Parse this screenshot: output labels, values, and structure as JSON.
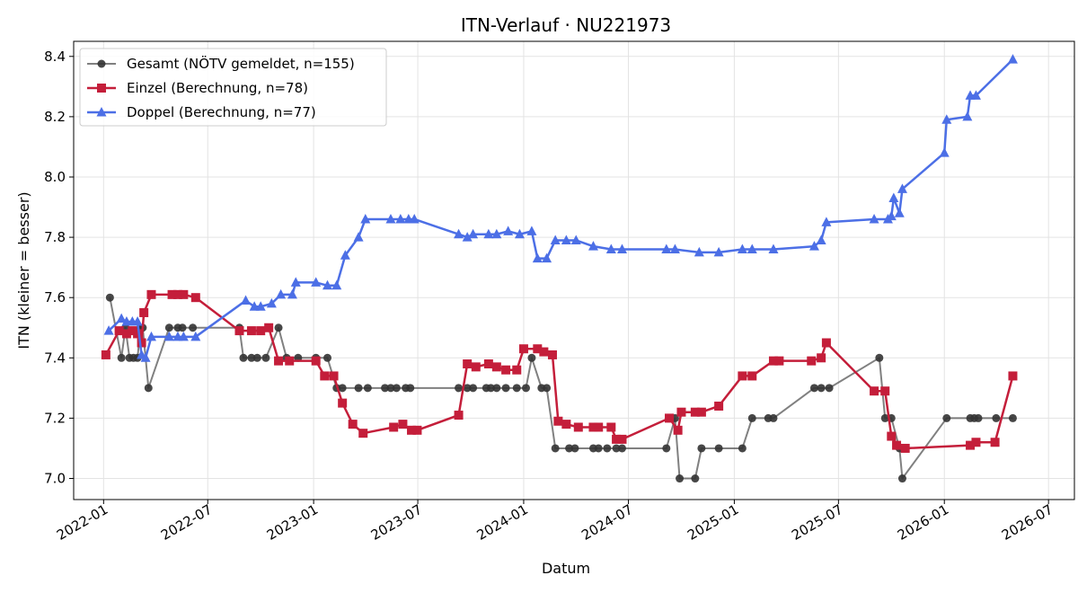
{
  "chart_data": {
    "type": "line",
    "title": "ITN-Verlauf · NU221973",
    "xlabel": "Datum",
    "ylabel": "ITN  (kleiner = besser)",
    "x_ticks": [
      "2022-01",
      "2022-07",
      "2023-01",
      "2023-07",
      "2024-01",
      "2024-07",
      "2025-01",
      "2025-07",
      "2026-01",
      "2026-07"
    ],
    "y_ticks": [
      7.0,
      7.2,
      7.4,
      7.6,
      7.8,
      8.0,
      8.2,
      8.4
    ],
    "xlim": [
      "2021-11-10",
      "2026-08-15"
    ],
    "ylim": [
      6.93,
      8.45
    ],
    "grid": true,
    "legend_position": "top-left",
    "series": [
      {
        "name": "Gesamt (NÖTV gemeldet, n=155)",
        "color": "#555555",
        "marker": "circle",
        "points": [
          [
            "2022-01-12",
            7.6
          ],
          [
            "2022-02-01",
            7.4
          ],
          [
            "2022-02-08",
            7.5
          ],
          [
            "2022-02-15",
            7.4
          ],
          [
            "2022-02-22",
            7.4
          ],
          [
            "2022-03-01",
            7.4
          ],
          [
            "2022-03-06",
            7.5
          ],
          [
            "2022-03-10",
            7.5
          ],
          [
            "2022-03-20",
            7.3
          ],
          [
            "2022-04-25",
            7.5
          ],
          [
            "2022-05-10",
            7.5
          ],
          [
            "2022-05-18",
            7.5
          ],
          [
            "2022-06-05",
            7.5
          ],
          [
            "2022-08-25",
            7.5
          ],
          [
            "2022-09-01",
            7.4
          ],
          [
            "2022-09-15",
            7.4
          ],
          [
            "2022-09-25",
            7.4
          ],
          [
            "2022-10-10",
            7.4
          ],
          [
            "2022-11-01",
            7.5
          ],
          [
            "2022-11-15",
            7.4
          ],
          [
            "2022-12-05",
            7.4
          ],
          [
            "2023-01-05",
            7.4
          ],
          [
            "2023-01-25",
            7.4
          ],
          [
            "2023-02-10",
            7.3
          ],
          [
            "2023-02-20",
            7.3
          ],
          [
            "2023-03-20",
            7.3
          ],
          [
            "2023-04-05",
            7.3
          ],
          [
            "2023-05-05",
            7.3
          ],
          [
            "2023-05-15",
            7.3
          ],
          [
            "2023-05-25",
            7.3
          ],
          [
            "2023-06-10",
            7.3
          ],
          [
            "2023-06-18",
            7.3
          ],
          [
            "2023-09-10",
            7.3
          ],
          [
            "2023-09-25",
            7.3
          ],
          [
            "2023-10-05",
            7.3
          ],
          [
            "2023-10-28",
            7.3
          ],
          [
            "2023-11-05",
            7.3
          ],
          [
            "2023-11-15",
            7.3
          ],
          [
            "2023-12-01",
            7.3
          ],
          [
            "2023-12-20",
            7.3
          ],
          [
            "2024-01-05",
            7.3
          ],
          [
            "2024-01-15",
            7.4
          ],
          [
            "2024-02-01",
            7.3
          ],
          [
            "2024-02-10",
            7.3
          ],
          [
            "2024-02-25",
            7.1
          ],
          [
            "2024-03-20",
            7.1
          ],
          [
            "2024-03-30",
            7.1
          ],
          [
            "2024-05-01",
            7.1
          ],
          [
            "2024-05-10",
            7.1
          ],
          [
            "2024-05-25",
            7.1
          ],
          [
            "2024-06-10",
            7.1
          ],
          [
            "2024-06-20",
            7.1
          ],
          [
            "2024-09-05",
            7.1
          ],
          [
            "2024-09-20",
            7.2
          ],
          [
            "2024-09-28",
            7.0
          ],
          [
            "2024-10-25",
            7.0
          ],
          [
            "2024-11-05",
            7.1
          ],
          [
            "2024-12-05",
            7.1
          ],
          [
            "2025-01-15",
            7.1
          ],
          [
            "2025-02-01",
            7.2
          ],
          [
            "2025-03-01",
            7.2
          ],
          [
            "2025-03-10",
            7.2
          ],
          [
            "2025-05-20",
            7.3
          ],
          [
            "2025-06-01",
            7.3
          ],
          [
            "2025-06-15",
            7.3
          ],
          [
            "2025-09-10",
            7.4
          ],
          [
            "2025-09-20",
            7.2
          ],
          [
            "2025-10-01",
            7.2
          ],
          [
            "2025-10-15",
            7.1
          ],
          [
            "2025-10-20",
            7.0
          ],
          [
            "2026-01-05",
            7.2
          ],
          [
            "2026-02-15",
            7.2
          ],
          [
            "2026-02-22",
            7.2
          ],
          [
            "2026-03-01",
            7.2
          ],
          [
            "2026-04-01",
            7.2
          ],
          [
            "2026-04-30",
            7.2
          ]
        ]
      },
      {
        "name": "Einzel (Berechnung, n=78)",
        "color": "#c41e3a",
        "marker": "square",
        "points": [
          [
            "2022-01-05",
            7.41
          ],
          [
            "2022-01-28",
            7.49
          ],
          [
            "2022-02-10",
            7.48
          ],
          [
            "2022-02-20",
            7.49
          ],
          [
            "2022-03-01",
            7.48
          ],
          [
            "2022-03-08",
            7.45
          ],
          [
            "2022-03-12",
            7.55
          ],
          [
            "2022-03-25",
            7.61
          ],
          [
            "2022-04-30",
            7.61
          ],
          [
            "2022-05-10",
            7.61
          ],
          [
            "2022-05-20",
            7.61
          ],
          [
            "2022-06-10",
            7.6
          ],
          [
            "2022-08-25",
            7.49
          ],
          [
            "2022-09-15",
            7.49
          ],
          [
            "2022-10-01",
            7.49
          ],
          [
            "2022-10-15",
            7.5
          ],
          [
            "2022-11-01",
            7.39
          ],
          [
            "2022-11-20",
            7.39
          ],
          [
            "2023-01-05",
            7.39
          ],
          [
            "2023-01-20",
            7.34
          ],
          [
            "2023-02-05",
            7.34
          ],
          [
            "2023-02-20",
            7.25
          ],
          [
            "2023-03-10",
            7.18
          ],
          [
            "2023-03-28",
            7.15
          ],
          [
            "2023-05-20",
            7.17
          ],
          [
            "2023-06-05",
            7.18
          ],
          [
            "2023-06-20",
            7.16
          ],
          [
            "2023-06-30",
            7.16
          ],
          [
            "2023-09-10",
            7.21
          ],
          [
            "2023-09-25",
            7.38
          ],
          [
            "2023-10-10",
            7.37
          ],
          [
            "2023-11-01",
            7.38
          ],
          [
            "2023-11-15",
            7.37
          ],
          [
            "2023-12-01",
            7.36
          ],
          [
            "2023-12-20",
            7.36
          ],
          [
            "2024-01-01",
            7.43
          ],
          [
            "2024-01-25",
            7.43
          ],
          [
            "2024-02-05",
            7.42
          ],
          [
            "2024-02-20",
            7.41
          ],
          [
            "2024-03-01",
            7.19
          ],
          [
            "2024-03-15",
            7.18
          ],
          [
            "2024-04-05",
            7.17
          ],
          [
            "2024-05-01",
            7.17
          ],
          [
            "2024-05-10",
            7.17
          ],
          [
            "2024-06-01",
            7.17
          ],
          [
            "2024-06-10",
            7.13
          ],
          [
            "2024-06-20",
            7.13
          ],
          [
            "2024-09-10",
            7.2
          ],
          [
            "2024-09-25",
            7.16
          ],
          [
            "2024-10-01",
            7.22
          ],
          [
            "2024-10-25",
            7.22
          ],
          [
            "2024-11-05",
            7.22
          ],
          [
            "2024-12-05",
            7.24
          ],
          [
            "2025-01-15",
            7.34
          ],
          [
            "2025-02-01",
            7.34
          ],
          [
            "2025-03-10",
            7.39
          ],
          [
            "2025-03-20",
            7.39
          ],
          [
            "2025-05-15",
            7.39
          ],
          [
            "2025-06-01",
            7.4
          ],
          [
            "2025-06-10",
            7.45
          ],
          [
            "2025-09-01",
            7.29
          ],
          [
            "2025-09-20",
            7.29
          ],
          [
            "2025-10-01",
            7.14
          ],
          [
            "2025-10-10",
            7.11
          ],
          [
            "2025-10-25",
            7.1
          ],
          [
            "2026-02-15",
            7.11
          ],
          [
            "2026-02-25",
            7.12
          ],
          [
            "2026-03-30",
            7.12
          ],
          [
            "2026-04-30",
            7.34
          ]
        ]
      },
      {
        "name": "Doppel (Berechnung, n=77)",
        "color": "#4c6fe6",
        "marker": "triangle",
        "points": [
          [
            "2022-01-10",
            7.49
          ],
          [
            "2022-02-01",
            7.53
          ],
          [
            "2022-02-10",
            7.52
          ],
          [
            "2022-02-20",
            7.52
          ],
          [
            "2022-03-01",
            7.52
          ],
          [
            "2022-03-08",
            7.41
          ],
          [
            "2022-03-15",
            7.4
          ],
          [
            "2022-03-25",
            7.47
          ],
          [
            "2022-04-25",
            7.47
          ],
          [
            "2022-05-10",
            7.47
          ],
          [
            "2022-05-20",
            7.47
          ],
          [
            "2022-06-10",
            7.47
          ],
          [
            "2022-09-05",
            7.59
          ],
          [
            "2022-09-20",
            7.57
          ],
          [
            "2022-10-01",
            7.57
          ],
          [
            "2022-10-20",
            7.58
          ],
          [
            "2022-11-05",
            7.61
          ],
          [
            "2022-11-25",
            7.61
          ],
          [
            "2022-12-01",
            7.65
          ],
          [
            "2023-01-05",
            7.65
          ],
          [
            "2023-01-25",
            7.64
          ],
          [
            "2023-02-10",
            7.64
          ],
          [
            "2023-02-25",
            7.74
          ],
          [
            "2023-03-20",
            7.8
          ],
          [
            "2023-04-01",
            7.86
          ],
          [
            "2023-05-15",
            7.86
          ],
          [
            "2023-06-01",
            7.86
          ],
          [
            "2023-06-15",
            7.86
          ],
          [
            "2023-06-25",
            7.86
          ],
          [
            "2023-09-10",
            7.81
          ],
          [
            "2023-09-25",
            7.8
          ],
          [
            "2023-10-05",
            7.81
          ],
          [
            "2023-11-01",
            7.81
          ],
          [
            "2023-11-15",
            7.81
          ],
          [
            "2023-12-05",
            7.82
          ],
          [
            "2023-12-25",
            7.81
          ],
          [
            "2024-01-15",
            7.82
          ],
          [
            "2024-01-25",
            7.73
          ],
          [
            "2024-02-10",
            7.73
          ],
          [
            "2024-02-25",
            7.79
          ],
          [
            "2024-03-15",
            7.79
          ],
          [
            "2024-04-01",
            7.79
          ],
          [
            "2024-05-01",
            7.77
          ],
          [
            "2024-06-01",
            7.76
          ],
          [
            "2024-06-20",
            7.76
          ],
          [
            "2024-09-05",
            7.76
          ],
          [
            "2024-09-20",
            7.76
          ],
          [
            "2024-11-01",
            7.75
          ],
          [
            "2024-12-05",
            7.75
          ],
          [
            "2025-01-15",
            7.76
          ],
          [
            "2025-02-01",
            7.76
          ],
          [
            "2025-03-10",
            7.76
          ],
          [
            "2025-05-20",
            7.77
          ],
          [
            "2025-06-01",
            7.79
          ],
          [
            "2025-06-10",
            7.85
          ],
          [
            "2025-09-01",
            7.86
          ],
          [
            "2025-09-25",
            7.86
          ],
          [
            "2025-10-01",
            7.87
          ],
          [
            "2025-10-05",
            7.93
          ],
          [
            "2025-10-15",
            7.88
          ],
          [
            "2025-10-20",
            7.96
          ],
          [
            "2026-01-01",
            8.08
          ],
          [
            "2026-01-05",
            8.19
          ],
          [
            "2026-02-10",
            8.2
          ],
          [
            "2026-02-15",
            8.27
          ],
          [
            "2026-02-25",
            8.27
          ],
          [
            "2026-04-30",
            8.39
          ]
        ]
      }
    ]
  }
}
